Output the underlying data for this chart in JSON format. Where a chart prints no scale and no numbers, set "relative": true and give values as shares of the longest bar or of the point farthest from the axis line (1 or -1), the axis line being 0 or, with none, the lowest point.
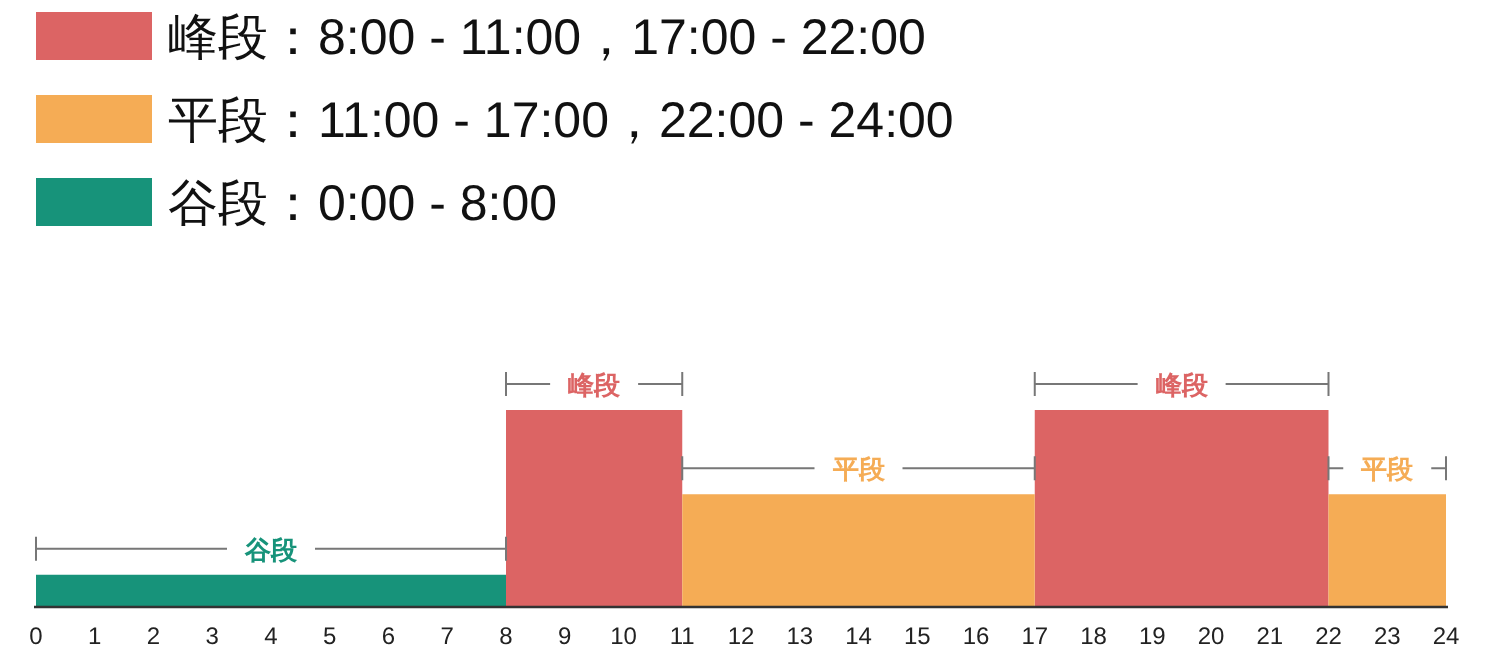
{
  "chart_data": {
    "type": "area",
    "relative": true,
    "legend": "top left",
    "series": [
      {
        "name": "峰段：8:00 - 11:00，17:00 - 22:00",
        "color": "#dc6464",
        "x": [
          8,
          8,
          11,
          11,
          17,
          17,
          22,
          22
        ],
        "values": [
          0,
          1,
          1,
          0,
          0,
          1,
          1,
          0
        ]
      },
      {
        "name": "平段：11:00 - 17:00，22:00 - 24:00",
        "color": "#f5ac55",
        "x": [
          11,
          11,
          17,
          17,
          22,
          22,
          24,
          24
        ],
        "values": [
          0,
          0.57,
          0.57,
          0,
          0,
          0.57,
          0.57,
          0
        ]
      },
      {
        "name": "谷段：0:00 - 8:00",
        "color": "#17937a",
        "x": [
          0,
          0,
          8,
          8
        ],
        "values": [
          0,
          0.16,
          0.16,
          0
        ]
      }
    ],
    "xlim": [
      0,
      24
    ],
    "xticks": [
      0,
      1,
      2,
      3,
      4,
      5,
      6,
      7,
      8,
      9,
      10,
      11,
      12,
      13,
      14,
      15,
      16,
      17,
      18,
      19,
      20,
      21,
      22,
      23,
      24
    ],
    "annotations": [
      {
        "text": "峰段",
        "x": 9.5,
        "y": 1
      },
      {
        "text": "峰段",
        "x": 19.5,
        "y": 1
      },
      {
        "text": "平段",
        "x": 14,
        "y": 0.57
      },
      {
        "text": "平段",
        "x": 23,
        "y": 0.57
      },
      {
        "text": "谷段",
        "x": 4,
        "y": 0.16
      }
    ]
  }
}
